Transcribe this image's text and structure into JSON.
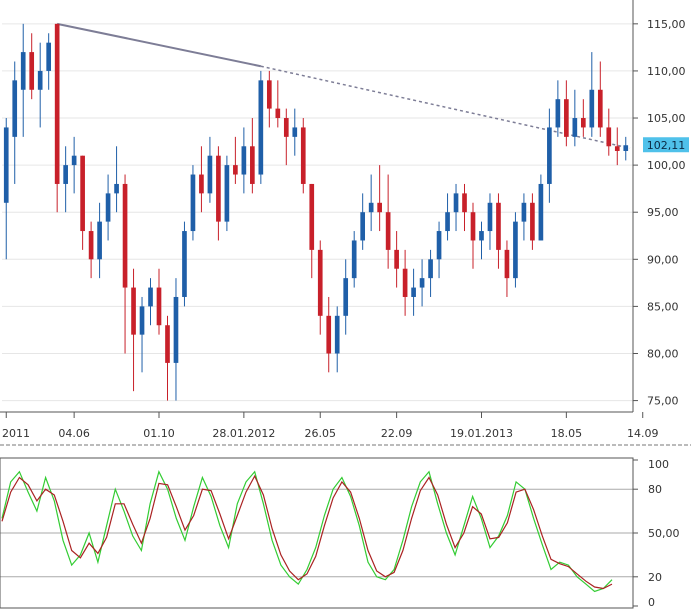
{
  "chart_data": [
    {
      "type": "candlestick",
      "title": "",
      "y_ticks": [
        75,
        80,
        85,
        90,
        95,
        100,
        105,
        110,
        115
      ],
      "y_tick_labels": [
        "75,00",
        "80,00",
        "85,00",
        "90,00",
        "95,00",
        "100,00",
        "105,00",
        "110,00",
        "115,00"
      ],
      "ylim": [
        74,
        117
      ],
      "x_tick_labels": [
        "2011",
        "04.06",
        "01.10",
        "28.01.2012",
        "26.05",
        "22.09",
        "19.01.2013",
        "18.05",
        "14.09"
      ],
      "x_tick_index": [
        0,
        8,
        18,
        28,
        37,
        46,
        56,
        66,
        75
      ],
      "last_price": 102.11,
      "last_price_label": "102,11",
      "colors": {
        "up": "#1f5fa8",
        "down": "#c8202a",
        "trendline": "#7d7d96",
        "badge": "#4fc1ea"
      },
      "trendline": {
        "from_index": 6,
        "from_value": 115,
        "to_index": 30,
        "to_value": 110.5,
        "extend_to_value": 101.8
      },
      "candles": [
        {
          "o": 96,
          "h": 105,
          "l": 90,
          "c": 104
        },
        {
          "o": 103,
          "h": 111,
          "l": 98,
          "c": 109
        },
        {
          "o": 108,
          "h": 115,
          "l": 103,
          "c": 112
        },
        {
          "o": 112,
          "h": 114,
          "l": 107,
          "c": 108
        },
        {
          "o": 108,
          "h": 113,
          "l": 104,
          "c": 110
        },
        {
          "o": 110,
          "h": 114,
          "l": 108,
          "c": 113
        },
        {
          "o": 115,
          "h": 115,
          "l": 95,
          "c": 98
        },
        {
          "o": 98,
          "h": 102,
          "l": 95,
          "c": 100
        },
        {
          "o": 100,
          "h": 103,
          "l": 97,
          "c": 101
        },
        {
          "o": 101,
          "h": 101,
          "l": 91,
          "c": 93
        },
        {
          "o": 93,
          "h": 94,
          "l": 88,
          "c": 90
        },
        {
          "o": 90,
          "h": 96,
          "l": 88,
          "c": 94
        },
        {
          "o": 94,
          "h": 99,
          "l": 92,
          "c": 97
        },
        {
          "o": 97,
          "h": 102,
          "l": 95,
          "c": 98
        },
        {
          "o": 98,
          "h": 99,
          "l": 80,
          "c": 87
        },
        {
          "o": 87,
          "h": 89,
          "l": 76,
          "c": 82
        },
        {
          "o": 82,
          "h": 86,
          "l": 78,
          "c": 85
        },
        {
          "o": 85,
          "h": 88,
          "l": 83,
          "c": 87
        },
        {
          "o": 87,
          "h": 89,
          "l": 82,
          "c": 83
        },
        {
          "o": 83,
          "h": 84,
          "l": 75,
          "c": 79
        },
        {
          "o": 79,
          "h": 88,
          "l": 75,
          "c": 86
        },
        {
          "o": 86,
          "h": 94,
          "l": 85,
          "c": 93
        },
        {
          "o": 93,
          "h": 100,
          "l": 92,
          "c": 99
        },
        {
          "o": 99,
          "h": 102,
          "l": 95,
          "c": 97
        },
        {
          "o": 97,
          "h": 103,
          "l": 96,
          "c": 101
        },
        {
          "o": 101,
          "h": 102,
          "l": 92,
          "c": 94
        },
        {
          "o": 94,
          "h": 101,
          "l": 93,
          "c": 100
        },
        {
          "o": 100,
          "h": 103,
          "l": 98,
          "c": 99
        },
        {
          "o": 99,
          "h": 104,
          "l": 97,
          "c": 102
        },
        {
          "o": 102,
          "h": 105,
          "l": 97,
          "c": 98
        },
        {
          "o": 99,
          "h": 110,
          "l": 98,
          "c": 109
        },
        {
          "o": 109,
          "h": 110,
          "l": 104,
          "c": 106
        },
        {
          "o": 106,
          "h": 109,
          "l": 104,
          "c": 105
        },
        {
          "o": 105,
          "h": 106,
          "l": 100,
          "c": 103
        },
        {
          "o": 103,
          "h": 106,
          "l": 101,
          "c": 104
        },
        {
          "o": 104,
          "h": 105,
          "l": 97,
          "c": 98
        },
        {
          "o": 98,
          "h": 98,
          "l": 88,
          "c": 91
        },
        {
          "o": 91,
          "h": 92,
          "l": 82,
          "c": 84
        },
        {
          "o": 84,
          "h": 86,
          "l": 78,
          "c": 80
        },
        {
          "o": 80,
          "h": 85,
          "l": 78,
          "c": 84
        },
        {
          "o": 84,
          "h": 90,
          "l": 82,
          "c": 88
        },
        {
          "o": 88,
          "h": 93,
          "l": 87,
          "c": 92
        },
        {
          "o": 92,
          "h": 97,
          "l": 91,
          "c": 95
        },
        {
          "o": 95,
          "h": 99,
          "l": 93,
          "c": 96
        },
        {
          "o": 96,
          "h": 100,
          "l": 93,
          "c": 95
        },
        {
          "o": 95,
          "h": 99,
          "l": 89,
          "c": 91
        },
        {
          "o": 91,
          "h": 93,
          "l": 87,
          "c": 89
        },
        {
          "o": 89,
          "h": 91,
          "l": 84,
          "c": 86
        },
        {
          "o": 86,
          "h": 89,
          "l": 84,
          "c": 87
        },
        {
          "o": 87,
          "h": 90,
          "l": 85,
          "c": 88
        },
        {
          "o": 88,
          "h": 91,
          "l": 86,
          "c": 90
        },
        {
          "o": 90,
          "h": 94,
          "l": 88,
          "c": 93
        },
        {
          "o": 93,
          "h": 97,
          "l": 92,
          "c": 95
        },
        {
          "o": 95,
          "h": 98,
          "l": 93,
          "c": 97
        },
        {
          "o": 97,
          "h": 98,
          "l": 93,
          "c": 95
        },
        {
          "o": 95,
          "h": 96,
          "l": 89,
          "c": 92
        },
        {
          "o": 92,
          "h": 94,
          "l": 90,
          "c": 93
        },
        {
          "o": 93,
          "h": 97,
          "l": 91,
          "c": 96
        },
        {
          "o": 96,
          "h": 97,
          "l": 89,
          "c": 91
        },
        {
          "o": 91,
          "h": 92,
          "l": 86,
          "c": 88
        },
        {
          "o": 88,
          "h": 95,
          "l": 87,
          "c": 94
        },
        {
          "o": 94,
          "h": 97,
          "l": 92,
          "c": 96
        },
        {
          "o": 96,
          "h": 97,
          "l": 91,
          "c": 92
        },
        {
          "o": 92,
          "h": 99,
          "l": 92,
          "c": 98
        },
        {
          "o": 98,
          "h": 106,
          "l": 96,
          "c": 104
        },
        {
          "o": 104,
          "h": 109,
          "l": 103,
          "c": 107
        },
        {
          "o": 107,
          "h": 109,
          "l": 102,
          "c": 103
        },
        {
          "o": 103,
          "h": 108,
          "l": 102,
          "c": 105
        },
        {
          "o": 105,
          "h": 107,
          "l": 103,
          "c": 104
        },
        {
          "o": 104,
          "h": 112,
          "l": 103,
          "c": 108
        },
        {
          "o": 108,
          "h": 111,
          "l": 103,
          "c": 104
        },
        {
          "o": 104,
          "h": 106,
          "l": 101,
          "c": 102
        },
        {
          "o": 102,
          "h": 104,
          "l": 100,
          "c": 101.5
        },
        {
          "o": 101.5,
          "h": 103,
          "l": 100.5,
          "c": 102.11
        }
      ],
      "y2_ticks": [
        0,
        20,
        50,
        80,
        100
      ],
      "y2_tick_labels": [
        "0",
        "20",
        "50,00",
        "80",
        "100"
      ],
      "y2lim": [
        0,
        100
      ],
      "stochastic": {
        "colors": {
          "k": "#33cc33",
          "d": "#aa2222"
        },
        "series": [
          {
            "values": [
              60,
              85,
              92,
              78,
              65,
              88,
              72,
              45,
              28,
              35,
              50,
              30,
              55,
              80,
              65,
              48,
              38,
              70,
              92,
              80,
              60,
              45,
              68,
              88,
              75,
              55,
              40,
              70,
              85,
              92,
              70,
              45,
              28,
              20,
              15,
              25,
              40,
              62,
              80,
              88,
              75,
              55,
              30,
              20,
              18,
              25,
              45,
              68,
              85,
              92,
              70,
              50,
              35,
              55,
              75,
              60,
              40,
              48,
              62,
              85,
              80,
              60,
              42,
              25,
              30,
              28,
              20,
              15,
              10,
              12,
              18
            ]
          },
          {
            "values": [
              58,
              78,
              88,
              83,
              72,
              80,
              76,
              58,
              38,
              33,
              43,
              36,
              47,
              70,
              70,
              56,
              43,
              60,
              84,
              83,
              68,
              52,
              62,
              80,
              79,
              63,
              46,
              62,
              78,
              89,
              76,
              53,
              35,
              24,
              18,
              22,
              34,
              55,
              74,
              85,
              78,
              60,
              38,
              24,
              20,
              23,
              38,
              60,
              79,
              88,
              76,
              56,
              40,
              50,
              68,
              63,
              46,
              47,
              57,
              78,
              80,
              66,
              48,
              32,
              29,
              27,
              22,
              17,
              13,
              12,
              15
            ]
          }
        ]
      }
    }
  ]
}
